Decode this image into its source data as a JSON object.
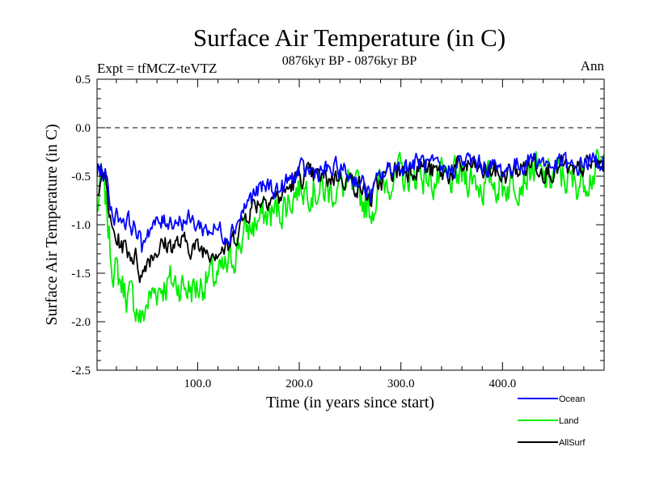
{
  "chart_data": {
    "type": "line",
    "title": "Surface Air Temperature (in C)",
    "subtitle": "0876kyr BP - 0876kyr BP",
    "experiment_label": "Expt = tfMCZ-teVTZ",
    "season_label": "Ann",
    "xlabel": "Time (in years since start)",
    "ylabel": "Surface Air Temperature (in C)",
    "xlim": [
      1,
      500
    ],
    "ylim": [
      -2.5,
      0.5
    ],
    "x_ticks": [
      100,
      200,
      300,
      400
    ],
    "x_tick_labels": [
      "100.0",
      "200.0",
      "300.0",
      "400.0"
    ],
    "y_ticks": [
      -2.5,
      -2.0,
      -1.5,
      -1.0,
      -0.5,
      0.0,
      0.5
    ],
    "y_tick_labels": [
      "-2.5",
      "-2.0",
      "-1.5",
      "-1.0",
      "-0.5",
      "0.0",
      "0.5"
    ],
    "reference_line": 0.0,
    "legend_position": "below-right",
    "series": [
      {
        "name": "Ocean",
        "color": "#0000ff",
        "anchor_x": [
          1,
          5,
          10,
          15,
          20,
          30,
          40,
          45,
          50,
          60,
          70,
          80,
          90,
          100,
          110,
          120,
          130,
          140,
          150,
          160,
          170,
          180,
          190,
          200,
          210,
          220,
          230,
          240,
          250,
          260,
          270,
          280,
          290,
          300,
          310,
          320,
          330,
          340,
          350,
          360,
          370,
          380,
          390,
          400,
          410,
          420,
          430,
          440,
          450,
          460,
          470,
          480,
          490,
          500
        ],
        "anchor_y": [
          -0.45,
          -0.42,
          -0.5,
          -0.85,
          -0.9,
          -0.95,
          -1.05,
          -1.25,
          -1.05,
          -1.0,
          -0.95,
          -0.95,
          -0.95,
          -1.0,
          -1.05,
          -1.05,
          -1.1,
          -0.95,
          -0.75,
          -0.65,
          -0.6,
          -0.65,
          -0.55,
          -0.45,
          -0.45,
          -0.45,
          -0.45,
          -0.42,
          -0.5,
          -0.55,
          -0.7,
          -0.5,
          -0.42,
          -0.4,
          -0.38,
          -0.35,
          -0.4,
          -0.45,
          -0.42,
          -0.35,
          -0.35,
          -0.4,
          -0.4,
          -0.45,
          -0.4,
          -0.38,
          -0.3,
          -0.35,
          -0.4,
          -0.35,
          -0.45,
          -0.35,
          -0.35,
          -0.35
        ]
      },
      {
        "name": "Land",
        "color": "#00ee00",
        "anchor_x": [
          1,
          5,
          10,
          15,
          20,
          30,
          40,
          45,
          50,
          60,
          70,
          80,
          90,
          100,
          110,
          120,
          130,
          140,
          150,
          160,
          170,
          180,
          190,
          200,
          210,
          220,
          230,
          240,
          250,
          260,
          270,
          280,
          290,
          300,
          310,
          320,
          330,
          340,
          350,
          360,
          370,
          380,
          390,
          400,
          410,
          420,
          430,
          440,
          450,
          460,
          470,
          480,
          490,
          500
        ],
        "anchor_y": [
          -0.9,
          -0.5,
          -0.8,
          -1.35,
          -1.5,
          -1.7,
          -1.85,
          -2.0,
          -1.8,
          -1.65,
          -1.6,
          -1.6,
          -1.65,
          -1.65,
          -1.55,
          -1.55,
          -1.45,
          -1.2,
          -1.05,
          -0.95,
          -0.9,
          -0.85,
          -0.75,
          -0.6,
          -0.6,
          -0.65,
          -0.65,
          -0.6,
          -0.65,
          -0.7,
          -0.85,
          -0.6,
          -0.5,
          -0.5,
          -0.5,
          -0.45,
          -0.55,
          -0.55,
          -0.55,
          -0.5,
          -0.5,
          -0.6,
          -0.55,
          -0.6,
          -0.55,
          -0.5,
          -0.4,
          -0.55,
          -0.5,
          -0.5,
          -0.6,
          -0.5,
          -0.45,
          -0.4
        ]
      },
      {
        "name": "AllSurf",
        "color": "#000000",
        "anchor_x": [
          1,
          5,
          10,
          15,
          20,
          30,
          40,
          45,
          50,
          60,
          70,
          80,
          90,
          100,
          110,
          120,
          130,
          140,
          150,
          160,
          170,
          180,
          190,
          200,
          210,
          220,
          230,
          240,
          250,
          260,
          270,
          280,
          290,
          300,
          310,
          320,
          330,
          340,
          350,
          360,
          370,
          380,
          390,
          400,
          410,
          420,
          430,
          440,
          450,
          460,
          470,
          480,
          490,
          500
        ],
        "anchor_y": [
          -0.6,
          -0.45,
          -0.6,
          -1.05,
          -1.15,
          -1.25,
          -1.35,
          -1.55,
          -1.35,
          -1.25,
          -1.2,
          -1.2,
          -1.2,
          -1.25,
          -1.25,
          -1.25,
          -1.25,
          -1.05,
          -0.85,
          -0.75,
          -0.7,
          -0.72,
          -0.62,
          -0.5,
          -0.5,
          -0.52,
          -0.52,
          -0.48,
          -0.55,
          -0.6,
          -0.75,
          -0.55,
          -0.45,
          -0.44,
          -0.42,
          -0.38,
          -0.45,
          -0.48,
          -0.46,
          -0.4,
          -0.4,
          -0.46,
          -0.44,
          -0.5,
          -0.45,
          -0.42,
          -0.34,
          -0.42,
          -0.44,
          -0.4,
          -0.5,
          -0.4,
          -0.38,
          -0.37
        ]
      }
    ]
  }
}
